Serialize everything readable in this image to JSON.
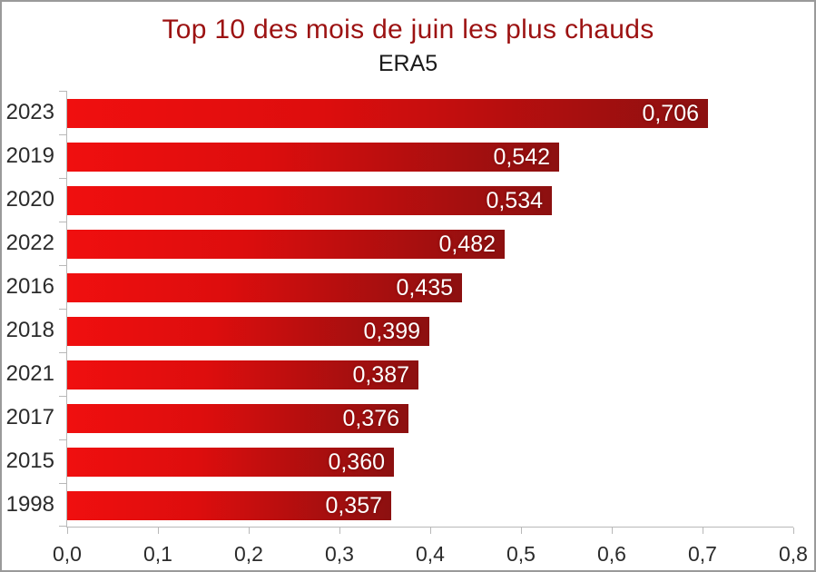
{
  "window": {
    "background": "#ffffff",
    "border_color": "#9a9a9a"
  },
  "chart_data": {
    "type": "bar",
    "orientation": "horizontal",
    "title": "Top 10 des mois de juin les plus chauds",
    "subtitle": "ERA5",
    "categories": [
      "2023",
      "2019",
      "2020",
      "2022",
      "2016",
      "2018",
      "2021",
      "2017",
      "2015",
      "1998"
    ],
    "values": [
      0.706,
      0.542,
      0.534,
      0.482,
      0.435,
      0.399,
      0.387,
      0.376,
      0.36,
      0.357
    ],
    "value_labels": [
      "0,706",
      "0,542",
      "0,534",
      "0,482",
      "0,435",
      "0,399",
      "0,387",
      "0,376",
      "0,360",
      "0,357"
    ],
    "xlim": [
      0,
      0.8
    ],
    "x_tick_values": [
      0,
      0.1,
      0.2,
      0.3,
      0.4,
      0.5,
      0.6,
      0.7,
      0.8
    ],
    "x_tick_labels": [
      "0,0",
      "0,1",
      "0,2",
      "0,3",
      "0,4",
      "0,5",
      "0,6",
      "0,7",
      "0,8"
    ],
    "grid": false,
    "legend": "none",
    "colors": {
      "bar_gradient_start": "#f00f0f",
      "bar_gradient_mid": "#dd0d0d",
      "bar_gradient_end": "#8c1010",
      "title": "#9c1212",
      "subtitle": "#1a1a1a",
      "axis_line": "#b8b8b8",
      "tick_label": "#2b2b2b",
      "category_label": "#2b2b2b",
      "value_label": "#ffffff"
    }
  }
}
